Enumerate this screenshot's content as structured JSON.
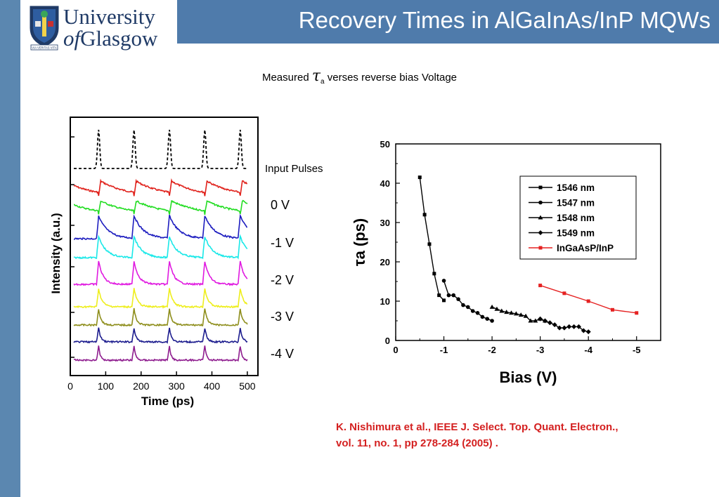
{
  "header": {
    "title": "Recovery Times in AlGaInAs/InP MQWs",
    "logo_line1": "University",
    "logo_line2_of": "of",
    "logo_line2": "Glasgow",
    "logo_motto": "VIA VERITAS VITA"
  },
  "subtitle": {
    "prefix": "Measured ",
    "symbol": "τ",
    "subscript": "a",
    "suffix": " verses reverse bias Voltage"
  },
  "citation": {
    "line1": "K. Nishimura et al., IEEE J. Select. Top. Quant. Electron.,",
    "line2": "vol. 11, no. 1, pp 278-284 (2005) ."
  },
  "colors": {
    "accent": "#4f7bab",
    "left_bar": "#5b87b0",
    "citation": "#d42020"
  },
  "chart_data": [
    {
      "type": "line",
      "xlabel": "Time (ps)",
      "ylabel": "Intensity (a.u.)",
      "x_ticks": [
        0,
        100,
        200,
        300,
        400,
        500
      ],
      "xlim": [
        0,
        530
      ],
      "pulse_times": [
        80,
        180,
        280,
        380,
        480
      ],
      "series": [
        {
          "name": "Input Pulses",
          "color": "#000000",
          "style": "dashed",
          "kind": "input"
        },
        {
          "name": "0 V",
          "color": "#e0201a",
          "kind": "tail",
          "decay": 1.0
        },
        {
          "name": "",
          "color": "#22dd22",
          "kind": "tail",
          "decay": 0.85
        },
        {
          "name": "-1 V",
          "color": "#1c1cbf",
          "kind": "decay",
          "decay": 0.45
        },
        {
          "name": "",
          "color": "#19e8e8",
          "kind": "decay",
          "decay": 0.35
        },
        {
          "name": "-2 V",
          "color": "#e019e0",
          "kind": "decay",
          "decay": 0.22
        },
        {
          "name": "",
          "color": "#eeee1c",
          "kind": "decay",
          "decay": 0.16
        },
        {
          "name": "-3 V",
          "color": "#8e8e1c",
          "kind": "decay",
          "decay": 0.12
        },
        {
          "name": "",
          "color": "#1c1c8e",
          "kind": "decay",
          "decay": 0.1
        },
        {
          "name": "-4 V",
          "color": "#8e1c8e",
          "kind": "decay",
          "decay": 0.08
        }
      ]
    },
    {
      "type": "line",
      "xlabel": "Bias (V)",
      "ylabel": "τa (ps)",
      "xlim": [
        0,
        -5.5
      ],
      "ylim": [
        0,
        50
      ],
      "x_ticks": [
        0,
        -1,
        -2,
        -3,
        -4,
        -5
      ],
      "y_ticks": [
        0,
        10,
        20,
        30,
        40,
        50
      ],
      "legend_position": "top-right",
      "series": [
        {
          "name": "1546 nm",
          "marker": "square",
          "color": "#000000",
          "x": [
            -0.5,
            -0.6,
            -0.7,
            -0.8,
            -0.9,
            -1.0
          ],
          "y": [
            41.5,
            32,
            24.5,
            17,
            11.5,
            10.2
          ]
        },
        {
          "name": "1547 nm",
          "marker": "circle",
          "color": "#000000",
          "x": [
            -1.0,
            -1.1,
            -1.2,
            -1.3,
            -1.4,
            -1.5,
            -1.6,
            -1.7,
            -1.8,
            -1.9,
            -2.0
          ],
          "y": [
            15.2,
            11.5,
            11.5,
            10.5,
            9,
            8.5,
            7.5,
            7,
            6,
            5.5,
            5
          ]
        },
        {
          "name": "1548 nm",
          "marker": "triangle",
          "color": "#000000",
          "x": [
            -2.0,
            -2.1,
            -2.2,
            -2.3,
            -2.4,
            -2.5,
            -2.6,
            -2.7,
            -2.8,
            -2.9,
            -3.0,
            -3.1
          ],
          "y": [
            8.5,
            8,
            7.5,
            7.2,
            7,
            6.8,
            6.5,
            6.2,
            5,
            5,
            5.5,
            5
          ]
        },
        {
          "name": "1549 nm",
          "marker": "diamond",
          "color": "#000000",
          "x": [
            -3.0,
            -3.1,
            -3.2,
            -3.3,
            -3.4,
            -3.5,
            -3.6,
            -3.7,
            -3.8,
            -3.9,
            -4.0
          ],
          "y": [
            5.5,
            5,
            4.5,
            4,
            3.2,
            3.2,
            3.5,
            3.5,
            3.5,
            2.5,
            2.2
          ]
        },
        {
          "name": "InGaAsP/InP",
          "marker": "square",
          "color": "#e52222",
          "x": [
            -3.0,
            -3.5,
            -4.0,
            -4.5,
            -5.0
          ],
          "y": [
            14,
            12,
            10,
            7.8,
            7
          ]
        }
      ]
    }
  ]
}
